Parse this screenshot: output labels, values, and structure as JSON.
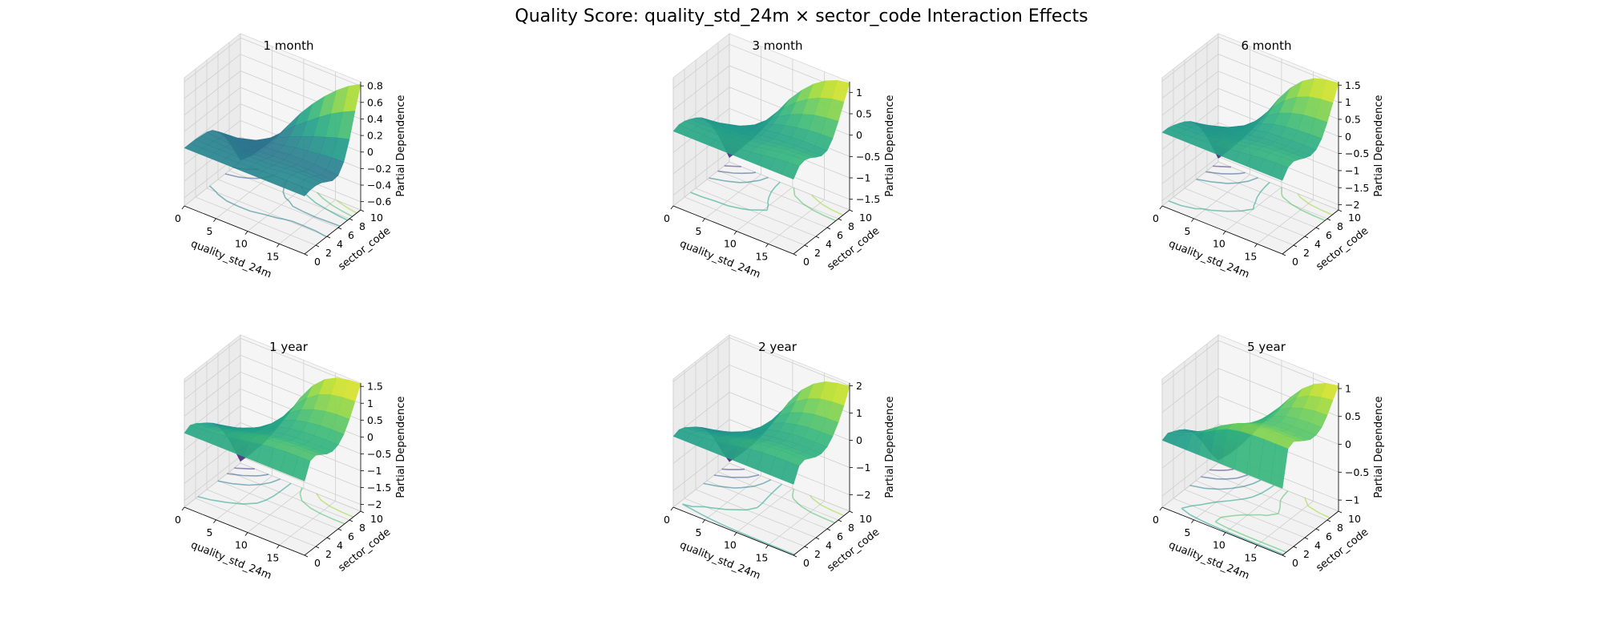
{
  "figure": {
    "title": "Quality Score: quality_std_24m × sector_code Interaction Effects"
  },
  "chart_data": [
    {
      "type": "surface",
      "title": "1 month",
      "xlabel": "quality_std_24m",
      "ylabel": "sector_code",
      "zlabel": "Partial Dependence",
      "x_ticks": [
        0,
        5,
        10,
        15
      ],
      "y_ticks": [
        0,
        2,
        4,
        6,
        8,
        10
      ],
      "z_ticks": [
        -0.6,
        -0.4,
        -0.2,
        0.0,
        0.2,
        0.4,
        0.6,
        0.8
      ],
      "xlim": [
        0,
        19
      ],
      "ylim": [
        0,
        10
      ],
      "zlim": [
        -0.7,
        0.85
      ],
      "colormap": "viridis",
      "grid_x": [
        0,
        1.9,
        3.8,
        5.7,
        7.6,
        9.5,
        11.4,
        13.3,
        15.2,
        17.1,
        19
      ],
      "grid_y": [
        0,
        1,
        2,
        3,
        4,
        5,
        6,
        7,
        8,
        9,
        10
      ],
      "z": [
        [
          0.0,
          0.0,
          0.0,
          -0.01,
          -0.02,
          -0.05,
          -0.12,
          -0.22,
          -0.36,
          -0.52,
          -0.68
        ],
        [
          0.0,
          0.0,
          -0.01,
          -0.02,
          -0.04,
          -0.06,
          -0.11,
          -0.19,
          -0.3,
          -0.43,
          -0.56
        ],
        [
          0.0,
          0.0,
          -0.01,
          -0.03,
          -0.05,
          -0.07,
          -0.1,
          -0.15,
          -0.22,
          -0.31,
          -0.4
        ],
        [
          0.0,
          0.0,
          -0.01,
          -0.03,
          -0.06,
          -0.08,
          -0.09,
          -0.11,
          -0.14,
          -0.18,
          -0.22
        ],
        [
          0.0,
          0.0,
          -0.01,
          -0.03,
          -0.06,
          -0.08,
          -0.08,
          -0.08,
          -0.07,
          -0.05,
          -0.02
        ],
        [
          0.0,
          0.0,
          0.0,
          -0.02,
          -0.05,
          -0.07,
          -0.07,
          -0.05,
          0.0,
          0.08,
          0.18
        ],
        [
          0.0,
          0.01,
          0.0,
          -0.02,
          -0.04,
          -0.06,
          -0.05,
          -0.02,
          0.06,
          0.19,
          0.35
        ],
        [
          0.0,
          0.02,
          0.02,
          0.0,
          -0.03,
          -0.06,
          -0.05,
          0.0,
          0.12,
          0.3,
          0.5
        ],
        [
          0.0,
          0.02,
          0.03,
          0.01,
          -0.03,
          -0.06,
          -0.05,
          0.02,
          0.17,
          0.4,
          0.63
        ],
        [
          0.0,
          0.02,
          0.03,
          0.01,
          -0.03,
          -0.07,
          -0.06,
          0.03,
          0.22,
          0.48,
          0.74
        ],
        [
          0.0,
          0.02,
          0.02,
          0.0,
          -0.04,
          -0.08,
          -0.07,
          0.04,
          0.26,
          0.55,
          0.82
        ]
      ]
    },
    {
      "type": "surface",
      "title": "3 month",
      "xlabel": "quality_std_24m",
      "ylabel": "sector_code",
      "zlabel": "Partial Dependence",
      "x_ticks": [
        0,
        5,
        10,
        15
      ],
      "y_ticks": [
        0,
        2,
        4,
        6,
        8,
        10
      ],
      "z_ticks": [
        -1.5,
        -1.0,
        -0.5,
        0.0,
        0.5,
        1.0
      ],
      "xlim": [
        0,
        19
      ],
      "ylim": [
        0,
        10
      ],
      "zlim": [
        -1.75,
        1.25
      ],
      "colormap": "viridis",
      "grid_x": [
        0,
        1.9,
        3.8,
        5.7,
        7.6,
        9.5,
        11.4,
        13.3,
        15.2,
        17.1,
        19
      ],
      "grid_y": [
        0,
        1,
        2,
        3,
        4,
        5,
        6,
        7,
        8,
        9,
        10
      ],
      "z": [
        [
          0.0,
          0.05,
          0.03,
          -0.03,
          -0.1,
          -0.2,
          -0.38,
          -0.62,
          -0.92,
          -1.28,
          -1.65
        ],
        [
          0.0,
          0.04,
          0.02,
          -0.03,
          -0.09,
          -0.17,
          -0.31,
          -0.5,
          -0.74,
          -1.02,
          -1.32
        ],
        [
          0.0,
          0.03,
          0.02,
          -0.02,
          -0.08,
          -0.14,
          -0.24,
          -0.38,
          -0.55,
          -0.75,
          -0.97
        ],
        [
          0.0,
          0.03,
          0.02,
          -0.02,
          -0.07,
          -0.11,
          -0.17,
          -0.25,
          -0.34,
          -0.45,
          -0.57
        ],
        [
          0.0,
          0.03,
          0.03,
          0.0,
          -0.05,
          -0.08,
          -0.1,
          -0.11,
          -0.12,
          -0.12,
          -0.12
        ],
        [
          0.0,
          0.05,
          0.06,
          0.03,
          -0.02,
          -0.05,
          -0.04,
          0.0,
          0.08,
          0.18,
          0.28
        ],
        [
          0.0,
          0.08,
          0.1,
          0.07,
          0.02,
          -0.02,
          0.0,
          0.09,
          0.24,
          0.42,
          0.6
        ],
        [
          0.0,
          0.12,
          0.15,
          0.12,
          0.06,
          0.01,
          0.03,
          0.15,
          0.36,
          0.61,
          0.86
        ],
        [
          0.0,
          0.16,
          0.2,
          0.16,
          0.09,
          0.03,
          0.05,
          0.2,
          0.45,
          0.75,
          1.05
        ],
        [
          0.0,
          0.19,
          0.23,
          0.18,
          0.1,
          0.03,
          0.05,
          0.22,
          0.5,
          0.84,
          1.17
        ],
        [
          0.0,
          0.2,
          0.24,
          0.19,
          0.1,
          0.03,
          0.05,
          0.23,
          0.53,
          0.88,
          1.22
        ]
      ]
    },
    {
      "type": "surface",
      "title": "6 month",
      "xlabel": "quality_std_24m",
      "ylabel": "sector_code",
      "zlabel": "Partial Dependence",
      "x_ticks": [
        0,
        5,
        10,
        15
      ],
      "y_ticks": [
        0,
        2,
        4,
        6,
        8,
        10
      ],
      "z_ticks": [
        -2.0,
        -1.5,
        -1.0,
        -0.5,
        0.0,
        0.5,
        1.0,
        1.5
      ],
      "xlim": [
        0,
        19
      ],
      "ylim": [
        0,
        10
      ],
      "zlim": [
        -2.15,
        1.6
      ],
      "colormap": "viridis",
      "grid_x": [
        0,
        1.9,
        3.8,
        5.7,
        7.6,
        9.5,
        11.4,
        13.3,
        15.2,
        17.1,
        19
      ],
      "grid_y": [
        0,
        1,
        2,
        3,
        4,
        5,
        6,
        7,
        8,
        9,
        10
      ],
      "z": [
        [
          0.0,
          0.0,
          -0.05,
          -0.12,
          -0.2,
          -0.32,
          -0.52,
          -0.8,
          -1.17,
          -1.6,
          -2.05
        ],
        [
          0.0,
          0.0,
          -0.04,
          -0.1,
          -0.17,
          -0.26,
          -0.42,
          -0.64,
          -0.94,
          -1.28,
          -1.64
        ],
        [
          0.0,
          0.01,
          -0.02,
          -0.08,
          -0.14,
          -0.2,
          -0.32,
          -0.48,
          -0.69,
          -0.94,
          -1.2
        ],
        [
          0.0,
          0.03,
          0.01,
          -0.05,
          -0.1,
          -0.14,
          -0.21,
          -0.3,
          -0.42,
          -0.56,
          -0.71
        ],
        [
          0.0,
          0.06,
          0.05,
          0.0,
          -0.05,
          -0.08,
          -0.1,
          -0.12,
          -0.14,
          -0.15,
          -0.16
        ],
        [
          0.0,
          0.1,
          0.11,
          0.06,
          0.01,
          -0.02,
          0.0,
          0.06,
          0.16,
          0.28,
          0.4
        ],
        [
          0.0,
          0.14,
          0.17,
          0.12,
          0.06,
          0.03,
          0.06,
          0.18,
          0.38,
          0.62,
          0.86
        ],
        [
          0.0,
          0.19,
          0.23,
          0.18,
          0.11,
          0.06,
          0.09,
          0.25,
          0.52,
          0.86,
          1.2
        ],
        [
          0.0,
          0.22,
          0.27,
          0.21,
          0.13,
          0.08,
          0.11,
          0.29,
          0.61,
          1.01,
          1.42
        ],
        [
          0.0,
          0.24,
          0.29,
          0.22,
          0.14,
          0.08,
          0.12,
          0.31,
          0.65,
          1.08,
          1.52
        ],
        [
          0.0,
          0.25,
          0.3,
          0.23,
          0.14,
          0.08,
          0.12,
          0.32,
          0.67,
          1.11,
          1.56
        ]
      ]
    },
    {
      "type": "surface",
      "title": "1 year",
      "xlabel": "quality_std_24m",
      "ylabel": "sector_code",
      "zlabel": "Partial Dependence",
      "x_ticks": [
        0,
        5,
        10,
        15
      ],
      "y_ticks": [
        0,
        2,
        4,
        6,
        8,
        10
      ],
      "z_ticks": [
        -2.0,
        -1.5,
        -1.0,
        -0.5,
        0.0,
        0.5,
        1.0,
        1.5
      ],
      "xlim": [
        0,
        19
      ],
      "ylim": [
        0,
        10
      ],
      "zlim": [
        -2.2,
        1.6
      ],
      "colormap": "viridis",
      "grid_x": [
        0,
        1.9,
        3.8,
        5.7,
        7.6,
        9.5,
        11.4,
        13.3,
        15.2,
        17.1,
        19
      ],
      "grid_y": [
        0,
        1,
        2,
        3,
        4,
        5,
        6,
        7,
        8,
        9,
        10
      ],
      "z": [
        [
          0.0,
          0.1,
          0.02,
          -0.1,
          -0.22,
          -0.36,
          -0.58,
          -0.88,
          -1.26,
          -1.7,
          -2.15
        ],
        [
          0.0,
          0.12,
          0.05,
          -0.06,
          -0.17,
          -0.29,
          -0.47,
          -0.71,
          -1.02,
          -1.37,
          -1.74
        ],
        [
          0.0,
          0.15,
          0.1,
          0.0,
          -0.11,
          -0.21,
          -0.35,
          -0.53,
          -0.76,
          -1.02,
          -1.3
        ],
        [
          0.0,
          0.2,
          0.17,
          0.08,
          -0.03,
          -0.11,
          -0.2,
          -0.31,
          -0.45,
          -0.6,
          -0.76
        ],
        [
          0.0,
          0.26,
          0.25,
          0.16,
          0.06,
          0.0,
          -0.03,
          -0.06,
          -0.09,
          -0.12,
          -0.15
        ],
        [
          0.0,
          0.32,
          0.34,
          0.25,
          0.15,
          0.1,
          0.12,
          0.18,
          0.26,
          0.36,
          0.46
        ],
        [
          0.0,
          0.38,
          0.41,
          0.32,
          0.21,
          0.16,
          0.2,
          0.32,
          0.5,
          0.72,
          0.95
        ],
        [
          0.0,
          0.42,
          0.46,
          0.36,
          0.25,
          0.2,
          0.25,
          0.4,
          0.65,
          0.96,
          1.28
        ],
        [
          0.0,
          0.45,
          0.49,
          0.38,
          0.27,
          0.22,
          0.28,
          0.45,
          0.74,
          1.1,
          1.47
        ],
        [
          0.0,
          0.46,
          0.5,
          0.39,
          0.28,
          0.23,
          0.29,
          0.47,
          0.78,
          1.16,
          1.55
        ],
        [
          0.0,
          0.46,
          0.5,
          0.39,
          0.28,
          0.23,
          0.29,
          0.47,
          0.79,
          1.18,
          1.58
        ]
      ]
    },
    {
      "type": "surface",
      "title": "2 year",
      "xlabel": "quality_std_24m",
      "ylabel": "sector_code",
      "zlabel": "Partial Dependence",
      "x_ticks": [
        0,
        5,
        10,
        15
      ],
      "y_ticks": [
        0,
        2,
        4,
        6,
        8,
        10
      ],
      "z_ticks": [
        -2,
        -1,
        0,
        1,
        2
      ],
      "xlim": [
        0,
        19
      ],
      "ylim": [
        0,
        10
      ],
      "zlim": [
        -2.6,
        2.1
      ],
      "colormap": "viridis",
      "grid_x": [
        0,
        1.9,
        3.8,
        5.7,
        7.6,
        9.5,
        11.4,
        13.3,
        15.2,
        17.1,
        19
      ],
      "grid_y": [
        0,
        1,
        2,
        3,
        4,
        5,
        6,
        7,
        8,
        9,
        10
      ],
      "z": [
        [
          0.0,
          0.08,
          0.0,
          -0.15,
          -0.3,
          -0.48,
          -0.76,
          -1.13,
          -1.6,
          -2.1,
          -2.55
        ],
        [
          0.0,
          0.1,
          0.04,
          -0.1,
          -0.24,
          -0.39,
          -0.62,
          -0.92,
          -1.3,
          -1.7,
          -2.07
        ],
        [
          0.0,
          0.14,
          0.1,
          -0.03,
          -0.16,
          -0.28,
          -0.46,
          -0.69,
          -0.97,
          -1.27,
          -1.55
        ],
        [
          0.0,
          0.2,
          0.18,
          0.06,
          -0.06,
          -0.15,
          -0.27,
          -0.41,
          -0.58,
          -0.76,
          -0.92
        ],
        [
          0.0,
          0.27,
          0.28,
          0.17,
          0.06,
          0.0,
          -0.04,
          -0.08,
          -0.12,
          -0.15,
          -0.18
        ],
        [
          0.0,
          0.35,
          0.38,
          0.28,
          0.17,
          0.13,
          0.16,
          0.23,
          0.33,
          0.44,
          0.55
        ],
        [
          0.0,
          0.42,
          0.47,
          0.37,
          0.26,
          0.22,
          0.28,
          0.42,
          0.63,
          0.88,
          1.14
        ],
        [
          0.0,
          0.47,
          0.53,
          0.43,
          0.32,
          0.28,
          0.35,
          0.53,
          0.81,
          1.16,
          1.54
        ],
        [
          0.0,
          0.5,
          0.57,
          0.46,
          0.35,
          0.31,
          0.39,
          0.6,
          0.92,
          1.33,
          1.8
        ],
        [
          0.0,
          0.51,
          0.58,
          0.47,
          0.36,
          0.32,
          0.4,
          0.62,
          0.96,
          1.4,
          1.92
        ],
        [
          0.0,
          0.51,
          0.58,
          0.47,
          0.36,
          0.32,
          0.4,
          0.63,
          0.98,
          1.43,
          1.98
        ]
      ]
    },
    {
      "type": "surface",
      "title": "5 year",
      "xlabel": "quality_std_24m",
      "ylabel": "sector_code",
      "zlabel": "Partial Dependence",
      "x_ticks": [
        0,
        5,
        10,
        15
      ],
      "y_ticks": [
        0,
        2,
        4,
        6,
        8,
        10
      ],
      "z_ticks": [
        -1.0,
        -0.5,
        0.0,
        0.5,
        1.0
      ],
      "xlim": [
        0,
        19
      ],
      "ylim": [
        0,
        10
      ],
      "zlim": [
        -1.2,
        1.1
      ],
      "colormap": "viridis",
      "grid_x": [
        0,
        1.9,
        3.8,
        5.7,
        7.6,
        9.5,
        11.4,
        13.3,
        15.2,
        17.1,
        19
      ],
      "grid_y": [
        0,
        1,
        2,
        3,
        4,
        5,
        6,
        7,
        8,
        9,
        10
      ],
      "z": [
        [
          0.0,
          0.05,
          0.0,
          -0.05,
          -0.12,
          -0.22,
          -0.38,
          -0.56,
          -0.78,
          -0.98,
          -1.15
        ],
        [
          0.0,
          0.1,
          0.06,
          0.0,
          -0.07,
          -0.16,
          -0.3,
          -0.45,
          -0.63,
          -0.8,
          -0.94
        ],
        [
          0.0,
          0.2,
          0.16,
          0.1,
          0.03,
          -0.06,
          -0.18,
          -0.31,
          -0.45,
          -0.58,
          -0.68
        ],
        [
          0.0,
          0.32,
          0.3,
          0.24,
          0.17,
          0.08,
          -0.02,
          -0.12,
          -0.22,
          -0.31,
          -0.38
        ],
        [
          0.0,
          0.45,
          0.45,
          0.38,
          0.3,
          0.22,
          0.14,
          0.06,
          0.0,
          -0.04,
          -0.07
        ],
        [
          0.0,
          0.55,
          0.57,
          0.5,
          0.42,
          0.35,
          0.3,
          0.26,
          0.24,
          0.23,
          0.22
        ],
        [
          0.0,
          0.6,
          0.64,
          0.57,
          0.5,
          0.43,
          0.4,
          0.4,
          0.43,
          0.47,
          0.5
        ],
        [
          0.0,
          0.62,
          0.67,
          0.6,
          0.53,
          0.47,
          0.45,
          0.48,
          0.56,
          0.66,
          0.74
        ],
        [
          0.0,
          0.63,
          0.68,
          0.61,
          0.54,
          0.48,
          0.47,
          0.52,
          0.63,
          0.78,
          0.91
        ],
        [
          0.0,
          0.63,
          0.68,
          0.61,
          0.54,
          0.48,
          0.48,
          0.54,
          0.67,
          0.84,
          1.01
        ],
        [
          0.0,
          0.63,
          0.68,
          0.61,
          0.54,
          0.48,
          0.48,
          0.54,
          0.68,
          0.87,
          1.05
        ]
      ]
    }
  ]
}
